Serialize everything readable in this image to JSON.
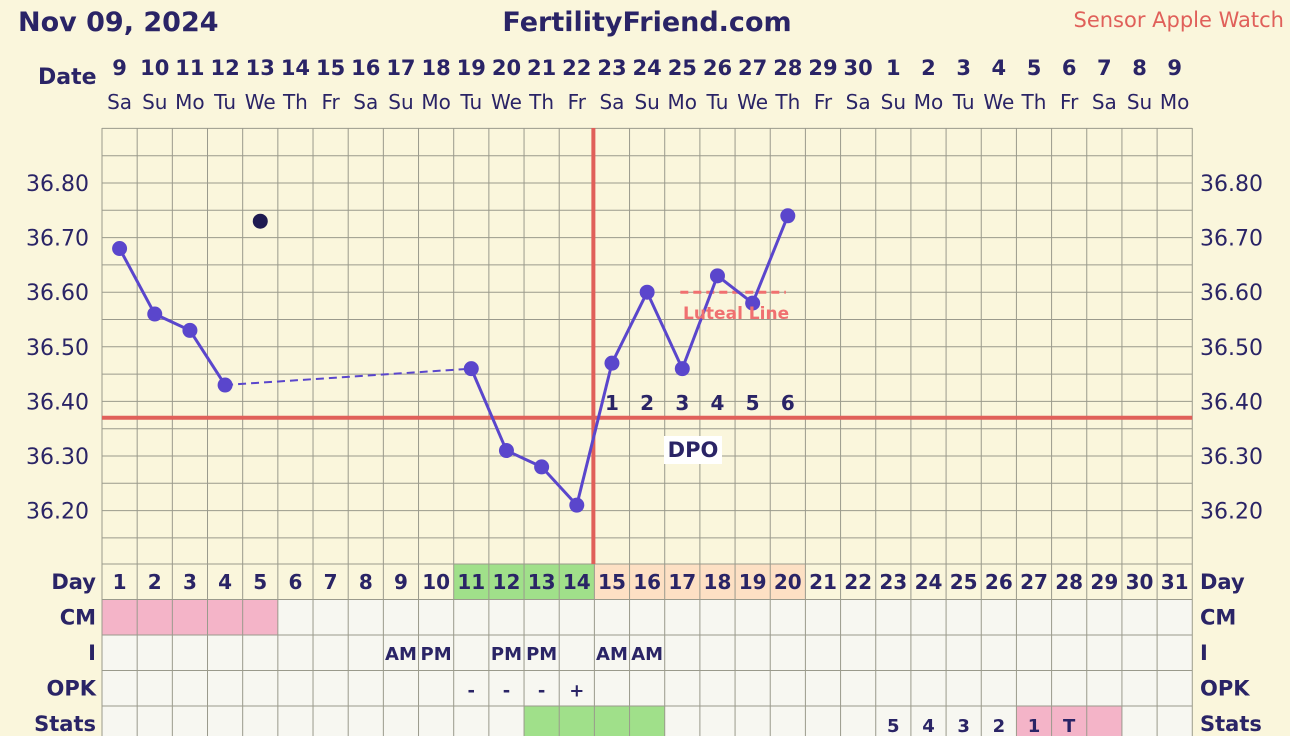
{
  "header": {
    "date": "Nov 09, 2024",
    "site": "FertilityFriend.com",
    "sensor": "Sensor Apple Watch"
  },
  "labels": {
    "date_row": "Date",
    "day_row": "Day",
    "cm_row": "CM",
    "i_row": "I",
    "opk_row": "OPK",
    "stats_row": "Stats",
    "dpo": "DPO",
    "luteal": "Luteal Line"
  },
  "colors": {
    "background": "#faf6dc",
    "grid": "#9a9a8c",
    "temp_line": "#5a46cc",
    "coverline": "#e0605a",
    "ovulation_line": "#e0605a",
    "luteal": "#f07070",
    "fertile_green": "#a0e08a",
    "luteal_peach": "#fde0c4",
    "cm_pink": "#f4b4c8",
    "stats_pink": "#f4b4c8",
    "text": "#2a2466"
  },
  "chart_data": {
    "type": "line",
    "title": "FertilityFriend.com",
    "ylim": [
      36.1,
      36.9
    ],
    "yticks": [
      "36.80",
      "36.70",
      "36.60",
      "36.50",
      "36.40",
      "36.30",
      "36.20"
    ],
    "dates": [
      "9",
      "10",
      "11",
      "12",
      "13",
      "14",
      "15",
      "16",
      "17",
      "18",
      "19",
      "20",
      "21",
      "22",
      "23",
      "24",
      "25",
      "26",
      "27",
      "28",
      "29",
      "30",
      "1",
      "2",
      "3",
      "4",
      "5",
      "6",
      "7",
      "8",
      "9"
    ],
    "weekdays": [
      "Sa",
      "Su",
      "Mo",
      "Tu",
      "We",
      "Th",
      "Fr",
      "Sa",
      "Su",
      "Mo",
      "Tu",
      "We",
      "Th",
      "Fr",
      "Sa",
      "Su",
      "Mo",
      "Tu",
      "We",
      "Th",
      "Fr",
      "Sa",
      "Su",
      "Mo",
      "Tu",
      "We",
      "Th",
      "Fr",
      "Sa",
      "Su",
      "Mo"
    ],
    "cycle_days": [
      "1",
      "2",
      "3",
      "4",
      "5",
      "6",
      "7",
      "8",
      "9",
      "10",
      "11",
      "12",
      "13",
      "14",
      "15",
      "16",
      "17",
      "18",
      "19",
      "20",
      "21",
      "22",
      "23",
      "24",
      "25",
      "26",
      "27",
      "28",
      "29",
      "30",
      "31"
    ],
    "series": [
      {
        "points": [
          {
            "day": 1,
            "temp": 36.68
          },
          {
            "day": 2,
            "temp": 36.56
          },
          {
            "day": 3,
            "temp": 36.53
          },
          {
            "day": 4,
            "temp": 36.43
          },
          {
            "day": 11,
            "temp": 36.46
          },
          {
            "day": 12,
            "temp": 36.31
          },
          {
            "day": 13,
            "temp": 36.28
          },
          {
            "day": 14,
            "temp": 36.21
          },
          {
            "day": 15,
            "temp": 36.47
          },
          {
            "day": 16,
            "temp": 36.6
          },
          {
            "day": 17,
            "temp": 36.46
          },
          {
            "day": 18,
            "temp": 36.63
          },
          {
            "day": 19,
            "temp": 36.58
          },
          {
            "day": 20,
            "temp": 36.74
          }
        ],
        "dashed_gap": [
          4,
          11
        ]
      }
    ],
    "discarded_point": {
      "day": 5,
      "temp": 36.73
    },
    "coverline": 36.37,
    "ovulation_day": 14,
    "luteal_line": {
      "temp": 36.6,
      "from_day": 17,
      "to_day": 20
    },
    "dpo": [
      {
        "day": 15,
        "label": "1"
      },
      {
        "day": 16,
        "label": "2"
      },
      {
        "day": 17,
        "label": "3"
      },
      {
        "day": 18,
        "label": "4"
      },
      {
        "day": 19,
        "label": "5"
      },
      {
        "day": 20,
        "label": "6"
      }
    ],
    "fertile_days": [
      11,
      12,
      13,
      14
    ],
    "luteal_days": [
      15,
      16,
      17,
      18,
      19,
      20
    ],
    "cm_marked_days": [
      1,
      2,
      3,
      4,
      5
    ],
    "intercourse": [
      {
        "day": 9,
        "label": "AM"
      },
      {
        "day": 10,
        "label": "PM"
      },
      {
        "day": 12,
        "label": "PM"
      },
      {
        "day": 13,
        "label": "PM"
      },
      {
        "day": 15,
        "label": "AM"
      },
      {
        "day": 16,
        "label": "AM"
      }
    ],
    "opk": [
      {
        "day": 11,
        "label": "-"
      },
      {
        "day": 12,
        "label": "-"
      },
      {
        "day": 13,
        "label": "-"
      },
      {
        "day": 14,
        "label": "+"
      }
    ],
    "stats_green_days": [
      13,
      14,
      15,
      16
    ],
    "stats": [
      {
        "day": 23,
        "label": "5"
      },
      {
        "day": 24,
        "label": "4"
      },
      {
        "day": 25,
        "label": "3"
      },
      {
        "day": 26,
        "label": "2"
      },
      {
        "day": 27,
        "label": "1"
      },
      {
        "day": 28,
        "label": "T"
      }
    ],
    "stats_pink_days": [
      27,
      28,
      29
    ]
  }
}
